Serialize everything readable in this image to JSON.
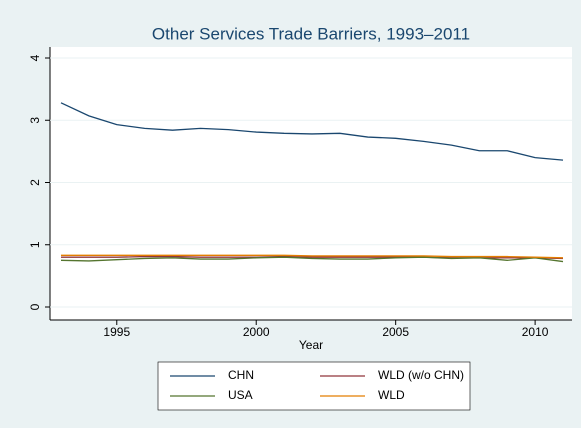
{
  "chart_data": {
    "type": "line",
    "title": "Other Services Trade Barriers, 1993–2011",
    "x_label": "Year",
    "x": [
      1993,
      1994,
      1995,
      1996,
      1997,
      1998,
      1999,
      2000,
      2001,
      2002,
      2003,
      2004,
      2005,
      2006,
      2007,
      2008,
      2009,
      2010,
      2011
    ],
    "series": [
      {
        "name": "CHN",
        "color": "#1a476f",
        "values": [
          3.28,
          3.07,
          2.93,
          2.87,
          2.84,
          2.87,
          2.85,
          2.81,
          2.79,
          2.78,
          2.79,
          2.73,
          2.71,
          2.66,
          2.6,
          2.51,
          2.51,
          2.4,
          2.36
        ]
      },
      {
        "name": "WLD (w/o CHN)",
        "color": "#90353b",
        "values": [
          0.8,
          0.8,
          0.8,
          0.81,
          0.81,
          0.8,
          0.8,
          0.8,
          0.81,
          0.8,
          0.8,
          0.8,
          0.8,
          0.8,
          0.79,
          0.79,
          0.79,
          0.79,
          0.78
        ]
      },
      {
        "name": "USA",
        "color": "#55752f",
        "values": [
          0.75,
          0.74,
          0.76,
          0.78,
          0.79,
          0.77,
          0.77,
          0.79,
          0.8,
          0.78,
          0.77,
          0.77,
          0.79,
          0.8,
          0.78,
          0.79,
          0.75,
          0.79,
          0.73
        ]
      },
      {
        "name": "WLD",
        "color": "#e37e00",
        "values": [
          0.83,
          0.83,
          0.83,
          0.83,
          0.83,
          0.83,
          0.83,
          0.83,
          0.83,
          0.82,
          0.82,
          0.82,
          0.82,
          0.82,
          0.81,
          0.81,
          0.81,
          0.8,
          0.79
        ]
      }
    ],
    "xlim": [
      1993,
      2011
    ],
    "xticks": [
      1995,
      2000,
      2005,
      2010
    ],
    "ylim": [
      0,
      4
    ],
    "yticks": [
      0,
      1,
      2,
      3,
      4
    ],
    "grid": true,
    "legend": "bottom"
  }
}
